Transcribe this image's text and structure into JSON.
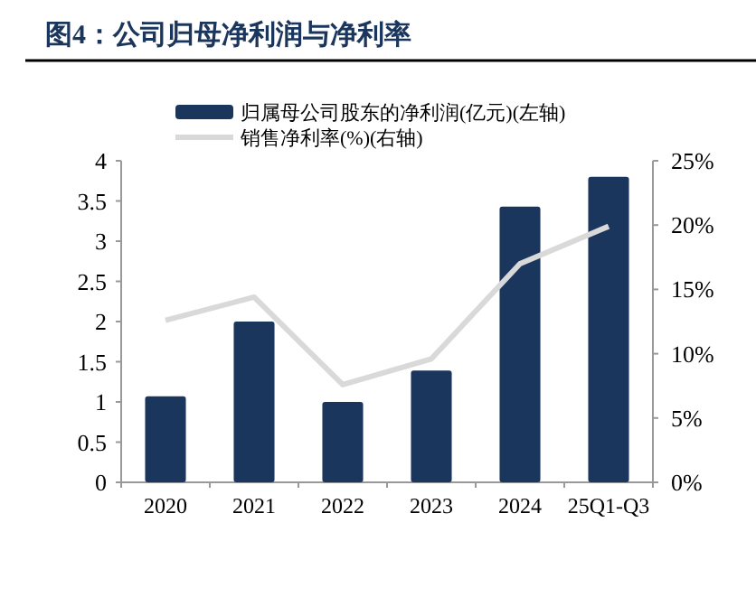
{
  "chart_data": {
    "type": "bar",
    "title": "图4：公司归母净利润与净利率",
    "categories": [
      "2020",
      "2021",
      "2022",
      "2023",
      "2024",
      "25Q1-Q3"
    ],
    "series": [
      {
        "name": "归属母公司股东的净利润(亿元)(左轴)",
        "color": "#1b365d",
        "values": [
          1.07,
          2.0,
          1.0,
          1.39,
          3.43,
          3.8
        ]
      },
      {
        "name": "销售净利率(%)(右轴)",
        "type": "line",
        "axis": "y2",
        "color": "#d9d9d9",
        "values": [
          12.6,
          14.4,
          7.6,
          9.6,
          17.0,
          19.9
        ]
      }
    ],
    "ylim": [
      0,
      4
    ],
    "yticks": [
      0,
      0.5,
      1,
      1.5,
      2,
      2.5,
      3,
      3.5,
      4
    ],
    "y2lim": [
      0,
      25
    ],
    "y2ticks": [
      {
        "value": 0,
        "label": "0%"
      },
      {
        "value": 5,
        "label": "5%"
      },
      {
        "value": 10,
        "label": "10%"
      },
      {
        "value": 15,
        "label": "15%"
      },
      {
        "value": 20,
        "label": "20%"
      },
      {
        "value": 25,
        "label": "25%"
      }
    ],
    "legend": "top",
    "grid": false,
    "marker": "none",
    "line_style": "solid"
  }
}
